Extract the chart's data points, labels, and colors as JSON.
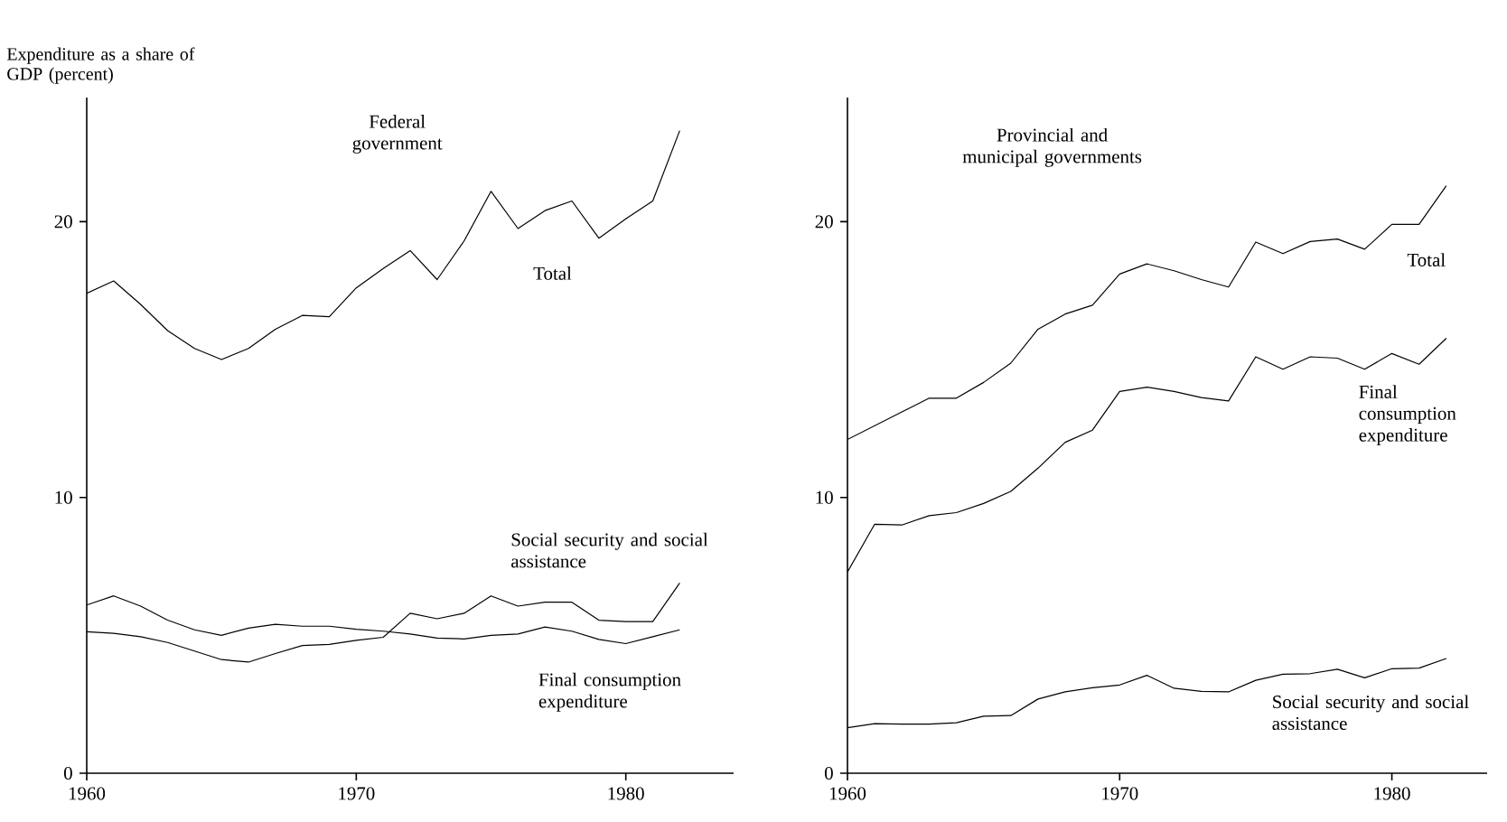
{
  "chart_data": [
    {
      "type": "line",
      "title": "Federal government",
      "ylabel": "Expenditure as a share of GDP (percent)",
      "marker": "none",
      "line_style": "solid",
      "x": [
        1960,
        1961,
        1962,
        1963,
        1964,
        1965,
        1966,
        1967,
        1968,
        1969,
        1970,
        1971,
        1972,
        1973,
        1974,
        1975,
        1976,
        1977,
        1978,
        1979,
        1980,
        1981,
        1982
      ],
      "xlim": [
        1960,
        1984
      ],
      "ylim": [
        0,
        24.5
      ],
      "xticks": [
        1960,
        1970,
        1980
      ],
      "yticks": [
        0,
        10,
        20
      ],
      "series": [
        {
          "name": "Total",
          "color": "#000000",
          "values": [
            17.4,
            17.85,
            17.0,
            16.05,
            15.4,
            15.0,
            15.4,
            16.1,
            16.6,
            16.55,
            17.6,
            18.3,
            18.95,
            17.9,
            19.3,
            21.1,
            19.75,
            20.4,
            20.75,
            19.4,
            20.1,
            20.75,
            23.3
          ]
        },
        {
          "name": "Social security and social assistance",
          "color": "#000000",
          "values": [
            5.13,
            5.07,
            4.95,
            4.74,
            4.43,
            4.12,
            4.03,
            4.34,
            4.63,
            4.67,
            4.82,
            4.93,
            5.8,
            5.6,
            5.8,
            6.43,
            6.06,
            6.2,
            6.2,
            5.55,
            5.5,
            5.5,
            6.9
          ]
        },
        {
          "name": "Final consumption expenditure",
          "color": "#000000",
          "values": [
            6.1,
            6.43,
            6.06,
            5.55,
            5.2,
            5.0,
            5.26,
            5.4,
            5.33,
            5.33,
            5.22,
            5.15,
            5.05,
            4.9,
            4.87,
            5.0,
            5.05,
            5.3,
            5.15,
            4.85,
            4.7,
            4.95,
            5.2
          ]
        }
      ]
    },
    {
      "type": "line",
      "title": "Provincial and municipal governments",
      "marker": "none",
      "line_style": "solid",
      "x": [
        1960,
        1961,
        1962,
        1963,
        1964,
        1965,
        1966,
        1967,
        1968,
        1969,
        1970,
        1971,
        1972,
        1973,
        1974,
        1975,
        1976,
        1977,
        1978,
        1979,
        1980,
        1981,
        1982
      ],
      "xlim": [
        1960,
        1983.5
      ],
      "ylim": [
        0,
        24.5
      ],
      "xticks": [
        1960,
        1970,
        1980
      ],
      "yticks": [
        0,
        10,
        20
      ],
      "series": [
        {
          "name": "Total",
          "color": "#000000",
          "values": [
            12.1,
            12.6,
            13.1,
            13.6,
            13.6,
            14.17,
            14.87,
            16.1,
            16.65,
            16.97,
            18.1,
            18.47,
            18.22,
            17.9,
            17.63,
            19.26,
            18.84,
            19.28,
            19.37,
            19.0,
            19.9,
            19.9,
            21.3
          ]
        },
        {
          "name": "Final consumption expenditure",
          "color": "#000000",
          "values": [
            7.3,
            9.03,
            9.0,
            9.34,
            9.45,
            9.78,
            10.22,
            11.06,
            12.0,
            12.44,
            13.84,
            14.0,
            13.84,
            13.62,
            13.5,
            15.1,
            14.65,
            15.1,
            15.05,
            14.65,
            15.22,
            14.83,
            15.77
          ]
        },
        {
          "name": "Social security and social assistance",
          "color": "#000000",
          "values": [
            1.65,
            1.8,
            1.78,
            1.78,
            1.83,
            2.07,
            2.09,
            2.69,
            2.95,
            3.1,
            3.2,
            3.55,
            3.08,
            2.97,
            2.95,
            3.37,
            3.59,
            3.61,
            3.77,
            3.46,
            3.79,
            3.81,
            4.16
          ]
        }
      ]
    }
  ]
}
